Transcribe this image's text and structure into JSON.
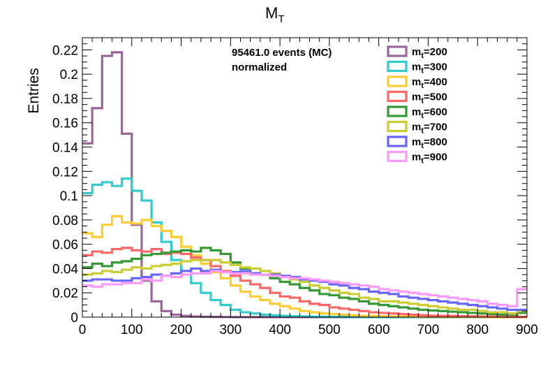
{
  "chart_data": {
    "type": "step-histogram",
    "title_main": "M",
    "title_sub": "T",
    "ylabel": "Entries",
    "xlabel": "",
    "xlim": [
      0,
      900
    ],
    "ylim": [
      0,
      0.23
    ],
    "bin_width": 20,
    "x_ticks": [
      0,
      100,
      200,
      300,
      400,
      500,
      600,
      700,
      800,
      900
    ],
    "y_ticks": [
      0,
      0.02,
      0.04,
      0.06,
      0.08,
      0.1,
      0.12,
      0.14,
      0.16,
      0.18,
      0.2,
      0.22
    ],
    "grid": false,
    "legend_placement": "top-right",
    "annotation_line1": "95461.0 events (MC)",
    "annotation_line2": "normalized",
    "series": [
      {
        "name_main": "m",
        "name_sub": "t",
        "name_suffix": "=200",
        "color": "#996699",
        "values": [
          0.143,
          0.172,
          0.215,
          0.218,
          0.151,
          0.076,
          0.03,
          0.013,
          0.005,
          0.002,
          0.001,
          0.0005,
          0.0003,
          0.0002,
          0.0001,
          0,
          0,
          0,
          0,
          0,
          0,
          0,
          0,
          0,
          0,
          0,
          0,
          0,
          0,
          0,
          0,
          0,
          0,
          0,
          0,
          0,
          0,
          0,
          0,
          0,
          0,
          0,
          0,
          0,
          0
        ]
      },
      {
        "name_main": "m",
        "name_sub": "t",
        "name_suffix": "=300",
        "color": "#33cccc",
        "values": [
          0.102,
          0.109,
          0.111,
          0.108,
          0.114,
          0.104,
          0.096,
          0.078,
          0.062,
          0.047,
          0.038,
          0.028,
          0.02,
          0.014,
          0.01,
          0.006,
          0.004,
          0.003,
          0.002,
          0.0015,
          0.001,
          0.0008,
          0.0006,
          0.0004,
          0.0003,
          0.0002,
          0.0002,
          0.0001,
          0,
          0,
          0,
          0,
          0,
          0,
          0,
          0,
          0,
          0,
          0,
          0,
          0,
          0,
          0,
          0,
          0
        ]
      },
      {
        "name_main": "m",
        "name_sub": "t",
        "name_suffix": "=400",
        "color": "#ffcc33",
        "values": [
          0.069,
          0.066,
          0.076,
          0.083,
          0.078,
          0.077,
          0.08,
          0.075,
          0.071,
          0.066,
          0.058,
          0.051,
          0.044,
          0.037,
          0.032,
          0.026,
          0.021,
          0.017,
          0.014,
          0.011,
          0.009,
          0.007,
          0.005,
          0.004,
          0.003,
          0.0025,
          0.002,
          0.0015,
          0.001,
          0.001,
          0.0008,
          0.0006,
          0.0005,
          0.0004,
          0.0003,
          0.0003,
          0.0002,
          0.0002,
          0.0001,
          0.0001,
          0.0001,
          0,
          0,
          0,
          0
        ]
      },
      {
        "name_main": "m",
        "name_sub": "t",
        "name_suffix": "=500",
        "color": "#ff6666",
        "values": [
          0.051,
          0.054,
          0.053,
          0.056,
          0.057,
          0.055,
          0.054,
          0.056,
          0.052,
          0.053,
          0.052,
          0.049,
          0.047,
          0.042,
          0.038,
          0.034,
          0.03,
          0.027,
          0.024,
          0.02,
          0.017,
          0.016,
          0.013,
          0.011,
          0.01,
          0.008,
          0.007,
          0.006,
          0.005,
          0.004,
          0.0035,
          0.003,
          0.0025,
          0.002,
          0.0015,
          0.0012,
          0.001,
          0.001,
          0.0008,
          0.0007,
          0.0006,
          0.0005,
          0.0004,
          0.0003,
          0.0003
        ]
      },
      {
        "name_main": "m",
        "name_sub": "t",
        "name_suffix": "=600",
        "color": "#339933",
        "values": [
          0.041,
          0.044,
          0.042,
          0.045,
          0.046,
          0.048,
          0.051,
          0.052,
          0.053,
          0.054,
          0.055,
          0.054,
          0.057,
          0.055,
          0.052,
          0.045,
          0.04,
          0.036,
          0.035,
          0.032,
          0.029,
          0.027,
          0.024,
          0.022,
          0.019,
          0.018,
          0.016,
          0.015,
          0.013,
          0.011,
          0.01,
          0.009,
          0.008,
          0.007,
          0.006,
          0.0055,
          0.005,
          0.0045,
          0.004,
          0.0035,
          0.003,
          0.0025,
          0.002,
          0.002,
          0.0035
        ]
      },
      {
        "name_main": "m",
        "name_sub": "t",
        "name_suffix": "=700",
        "color": "#cccc33",
        "values": [
          0.035,
          0.036,
          0.038,
          0.037,
          0.039,
          0.041,
          0.04,
          0.042,
          0.043,
          0.044,
          0.046,
          0.047,
          0.047,
          0.047,
          0.045,
          0.043,
          0.041,
          0.04,
          0.038,
          0.036,
          0.033,
          0.031,
          0.029,
          0.026,
          0.024,
          0.022,
          0.02,
          0.019,
          0.016,
          0.015,
          0.013,
          0.013,
          0.012,
          0.011,
          0.01,
          0.009,
          0.008,
          0.007,
          0.006,
          0.006,
          0.005,
          0.004,
          0.004,
          0.003,
          0.005
        ]
      },
      {
        "name_main": "m",
        "name_sub": "t",
        "name_suffix": "=800",
        "color": "#6666ff",
        "values": [
          0.03,
          0.031,
          0.031,
          0.03,
          0.03,
          0.032,
          0.033,
          0.035,
          0.034,
          0.036,
          0.038,
          0.04,
          0.038,
          0.039,
          0.037,
          0.037,
          0.038,
          0.036,
          0.035,
          0.035,
          0.034,
          0.033,
          0.031,
          0.03,
          0.029,
          0.027,
          0.026,
          0.024,
          0.023,
          0.021,
          0.02,
          0.019,
          0.017,
          0.016,
          0.015,
          0.014,
          0.013,
          0.012,
          0.011,
          0.01,
          0.009,
          0.008,
          0.007,
          0.006,
          0.006
        ]
      },
      {
        "name_main": "m",
        "name_sub": "t",
        "name_suffix": "=900",
        "color": "#ff99ff",
        "values": [
          0.026,
          0.025,
          0.027,
          0.027,
          0.028,
          0.028,
          0.031,
          0.03,
          0.034,
          0.033,
          0.035,
          0.036,
          0.036,
          0.038,
          0.037,
          0.036,
          0.036,
          0.035,
          0.035,
          0.034,
          0.033,
          0.032,
          0.032,
          0.031,
          0.03,
          0.029,
          0.028,
          0.027,
          0.026,
          0.025,
          0.023,
          0.022,
          0.021,
          0.02,
          0.019,
          0.018,
          0.017,
          0.016,
          0.015,
          0.014,
          0.013,
          0.011,
          0.01,
          0.009,
          0.023
        ]
      }
    ]
  }
}
